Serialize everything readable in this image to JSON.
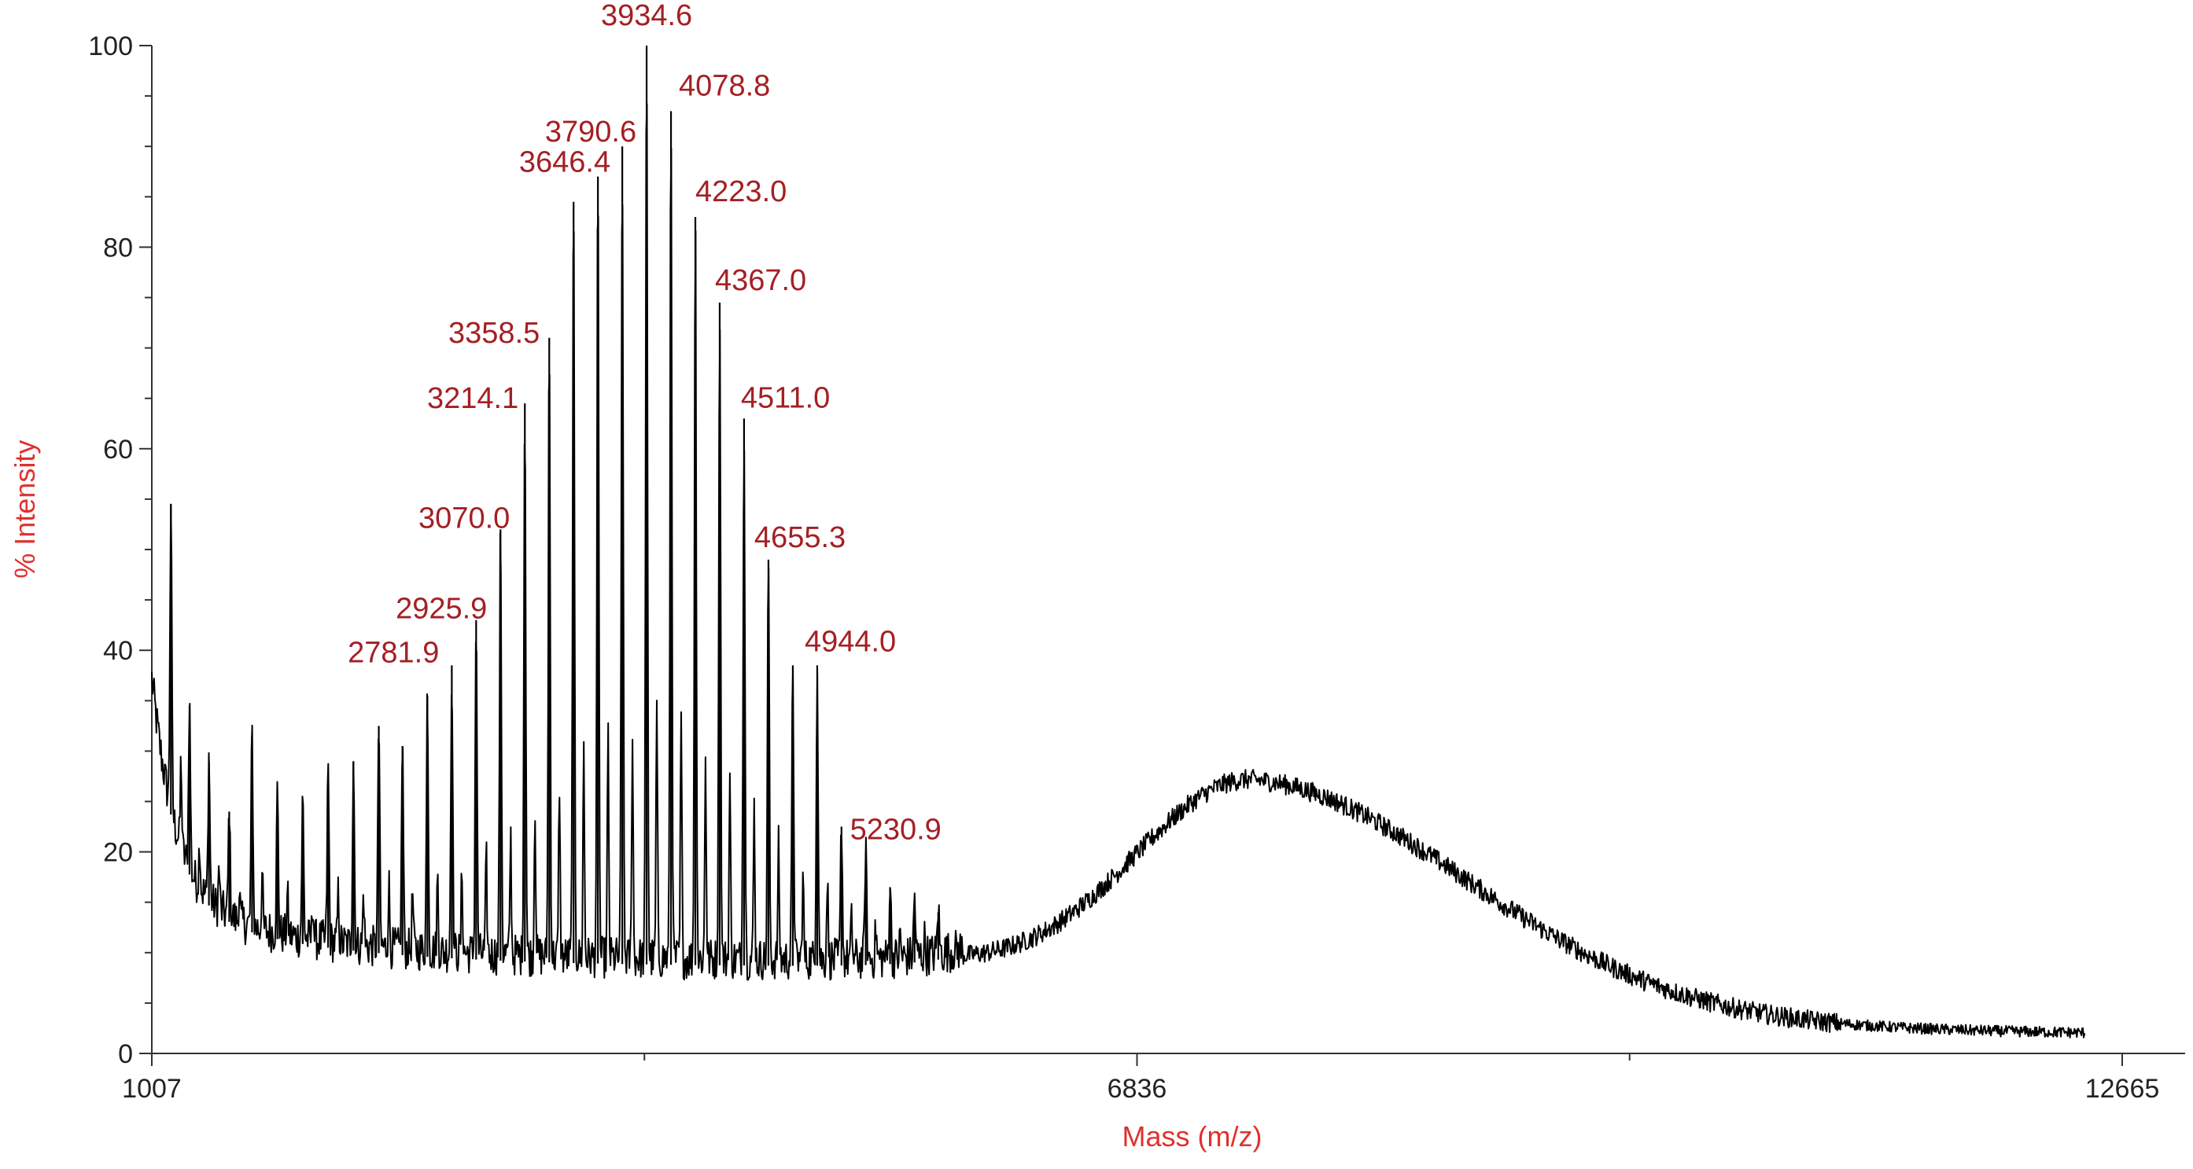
{
  "chart_data": {
    "type": "line",
    "title": "",
    "xlabel": "Mass (m/z)",
    "ylabel": "% Intensity",
    "xlim": [
      1007,
      12665
    ],
    "ylim": [
      0,
      100
    ],
    "x_ticks": [
      1007,
      6836,
      12665
    ],
    "y_ticks": [
      0,
      20,
      40,
      60,
      80,
      100
    ],
    "peak_spacing": 144.2,
    "peaks": [
      {
        "x": 1120,
        "y": 54.5
      },
      {
        "x": 1230,
        "y": 34.5
      },
      {
        "x": 1345,
        "y": 29
      },
      {
        "x": 1465,
        "y": 24
      },
      {
        "x": 1600,
        "y": 31.5
      },
      {
        "x": 1750,
        "y": 25.5
      },
      {
        "x": 1900,
        "y": 25
      },
      {
        "x": 2050,
        "y": 28
      },
      {
        "x": 2200,
        "y": 29
      },
      {
        "x": 2350,
        "y": 32.5
      },
      {
        "x": 2490,
        "y": 30.5
      },
      {
        "x": 2637.6,
        "y": 35.5
      },
      {
        "x": 2781.9,
        "y": 38.5,
        "label": "2781.9"
      },
      {
        "x": 2925.9,
        "y": 43,
        "label": "2925.9"
      },
      {
        "x": 3070.0,
        "y": 52,
        "label": "3070.0"
      },
      {
        "x": 3214.1,
        "y": 64.5,
        "label": "3214.1"
      },
      {
        "x": 3358.5,
        "y": 71,
        "label": "3358.5"
      },
      {
        "x": 3502.4,
        "y": 84.5
      },
      {
        "x": 3646.4,
        "y": 87,
        "label": "3646.4"
      },
      {
        "x": 3790.6,
        "y": 90,
        "label": "3790.6"
      },
      {
        "x": 3934.6,
        "y": 100,
        "label": "3934.6"
      },
      {
        "x": 4078.8,
        "y": 93.5,
        "label": "4078.8"
      },
      {
        "x": 4223.0,
        "y": 83,
        "label": "4223.0"
      },
      {
        "x": 4367.0,
        "y": 74.5,
        "label": "4367.0"
      },
      {
        "x": 4511.0,
        "y": 63,
        "label": "4511.0"
      },
      {
        "x": 4655.3,
        "y": 49,
        "label": "4655.3"
      },
      {
        "x": 4799.6,
        "y": 38.5
      },
      {
        "x": 4944.0,
        "y": 38.5,
        "label": "4944.0"
      },
      {
        "x": 5087.5,
        "y": 22.5
      },
      {
        "x": 5230.9,
        "y": 20,
        "label": "5230.9"
      },
      {
        "x": 5375,
        "y": 16.5
      },
      {
        "x": 5520,
        "y": 15
      },
      {
        "x": 5660,
        "y": 14
      }
    ],
    "broad_hump": {
      "center": 7530,
      "height": 29.5,
      "width_left": 950,
      "width_right": 1700
    },
    "baseline_end_y": 1.5,
    "line_color": "#000000",
    "peak_label_color": "#a41f24",
    "axis_title_color": "#e0312e"
  }
}
